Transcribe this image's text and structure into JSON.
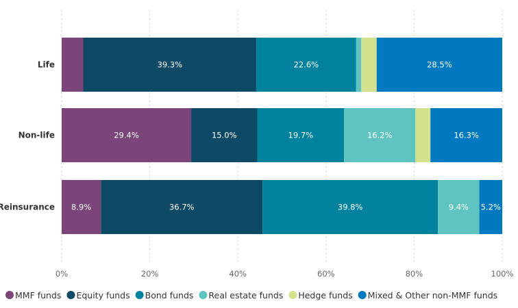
{
  "chart_data": {
    "type": "bar",
    "orientation": "horizontal",
    "stacked": true,
    "categories": [
      "Life",
      "Non-life",
      "Reinsurance"
    ],
    "xlim": [
      0,
      100
    ],
    "xticks": [
      "0%",
      "20%",
      "40%",
      "60%",
      "80%",
      "100%"
    ],
    "grid": "vertical dotted",
    "legend_position": "bottom",
    "series": [
      {
        "name": "MMF funds",
        "color": "#7B4579",
        "values": [
          4.9,
          29.4,
          8.9
        ],
        "labels": [
          "",
          "29.4%",
          "8.9%"
        ]
      },
      {
        "name": "Equity funds",
        "color": "#0E4A66",
        "values": [
          39.3,
          15.0,
          36.7
        ],
        "labels": [
          "39.3%",
          "15.0%",
          "36.7%"
        ]
      },
      {
        "name": "Bond funds",
        "color": "#00829F",
        "values": [
          22.6,
          19.7,
          39.8
        ],
        "labels": [
          "22.6%",
          "19.7%",
          "39.8%"
        ]
      },
      {
        "name": "Real estate funds",
        "color": "#5FC4C0",
        "values": [
          1.2,
          16.2,
          9.4
        ],
        "labels": [
          "",
          "16.2%",
          "9.4%"
        ]
      },
      {
        "name": "Hedge funds",
        "color": "#D4E18E",
        "values": [
          3.5,
          3.4,
          0
        ],
        "labels": [
          "",
          "",
          ""
        ]
      },
      {
        "name": "Mixed & Other non-MMF funds",
        "color": "#0079C1",
        "values": [
          28.5,
          16.3,
          5.2
        ],
        "labels": [
          "28.5%",
          "16.3%",
          "5.2%"
        ]
      }
    ]
  }
}
